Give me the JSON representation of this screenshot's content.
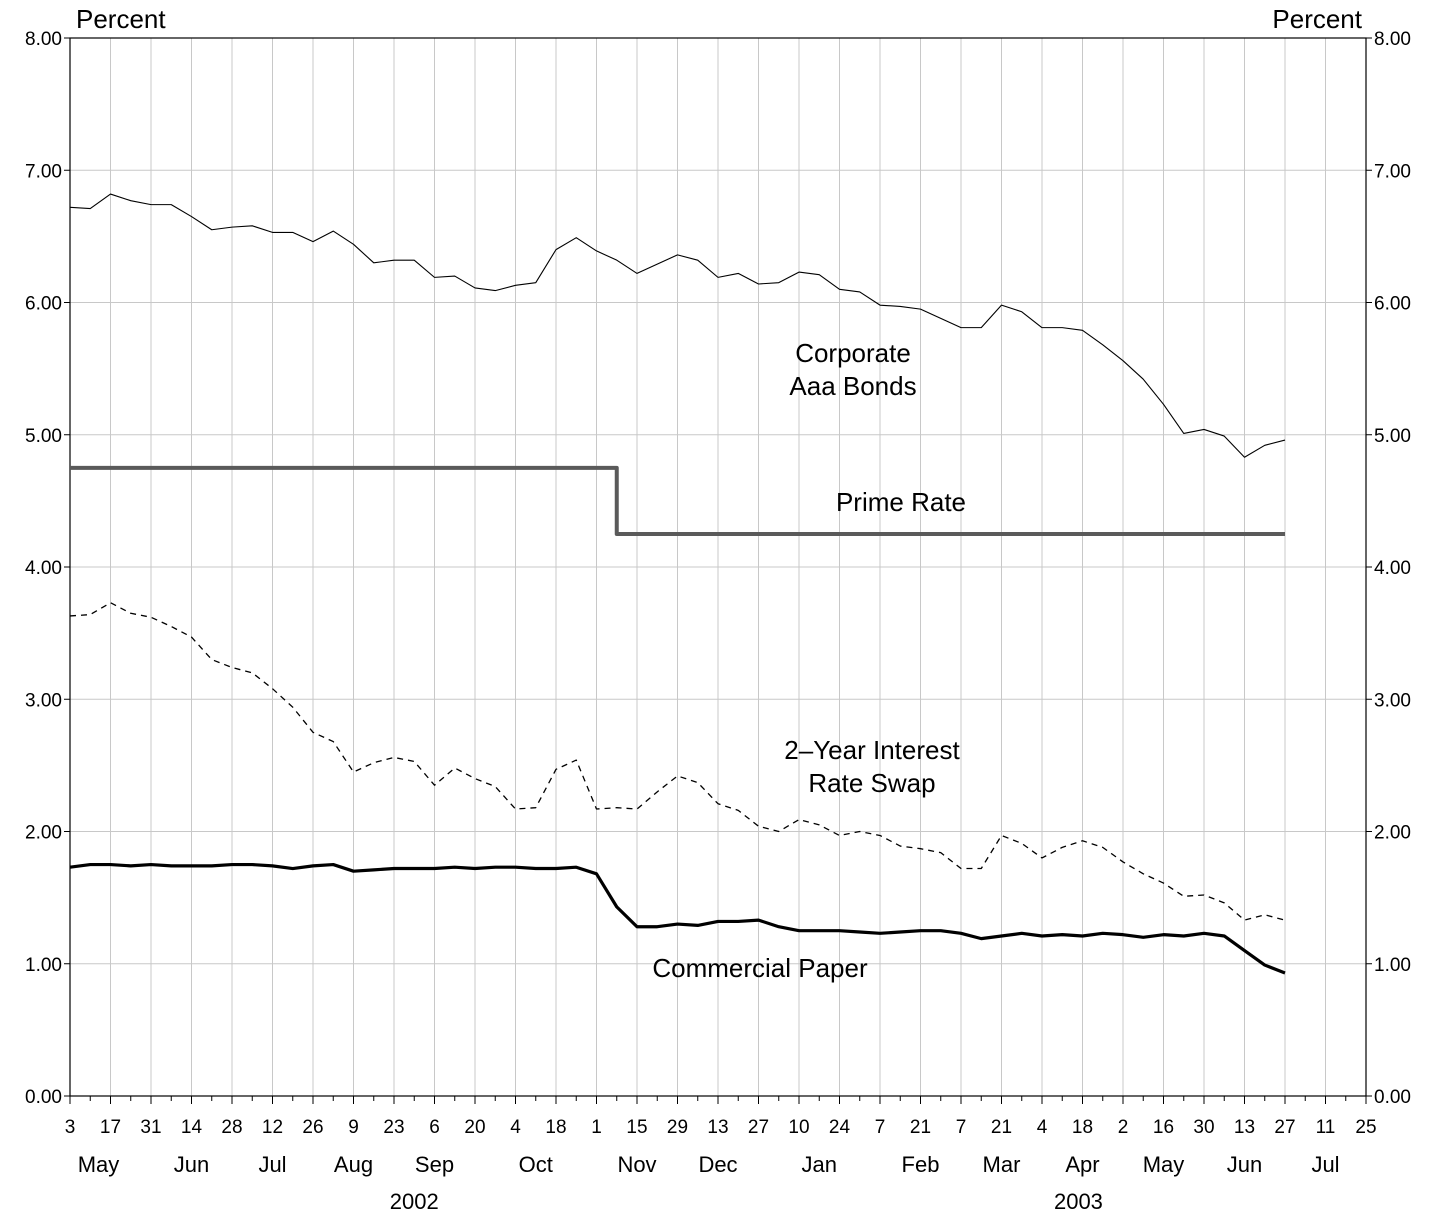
{
  "chart_data": {
    "type": "line",
    "y_axis_left_title": "Percent",
    "y_axis_right_title": "Percent",
    "ylim": [
      0,
      8
    ],
    "y_ticks": [
      "0.00",
      "1.00",
      "2.00",
      "3.00",
      "4.00",
      "5.00",
      "6.00",
      "7.00",
      "8.00"
    ],
    "grid": true,
    "x_day_labels": [
      "3",
      "17",
      "31",
      "14",
      "28",
      "12",
      "26",
      "9",
      "23",
      "6",
      "20",
      "4",
      "18",
      "1",
      "15",
      "29",
      "13",
      "27",
      "10",
      "24",
      "7",
      "21",
      "7",
      "21",
      "4",
      "18",
      "2",
      "16",
      "30",
      "13",
      "27",
      "11",
      "25"
    ],
    "x_month_labels": [
      "May",
      "Jun",
      "Jul",
      "Aug",
      "Sep",
      "Oct",
      "Nov",
      "Dec",
      "Jan",
      "Feb",
      "Mar",
      "Apr",
      "May",
      "Jun",
      "Jul"
    ],
    "x_year_labels": [
      "2002",
      "2003"
    ],
    "series": [
      {
        "name": "Corporate Aaa Bonds",
        "style": "thin-solid",
        "color": "#000000",
        "values": [
          6.72,
          6.71,
          6.82,
          6.77,
          6.74,
          6.74,
          6.65,
          6.55,
          6.57,
          6.58,
          6.53,
          6.53,
          6.46,
          6.54,
          6.44,
          6.3,
          6.32,
          6.32,
          6.19,
          6.2,
          6.11,
          6.09,
          6.13,
          6.15,
          6.4,
          6.49,
          6.39,
          6.32,
          6.22,
          6.29,
          6.36,
          6.32,
          6.19,
          6.22,
          6.14,
          6.15,
          6.23,
          6.21,
          6.1,
          6.08,
          5.98,
          5.97,
          5.95,
          5.88,
          5.81,
          5.81,
          5.98,
          5.93,
          5.81,
          5.81,
          5.79,
          5.68,
          5.56,
          5.42,
          5.23,
          5.01,
          5.04,
          4.99,
          4.83,
          4.92,
          4.96
        ]
      },
      {
        "name": "Prime Rate",
        "style": "thick-gray",
        "color": "#5a5a5a",
        "values": [
          4.75,
          4.75,
          4.75,
          4.75,
          4.75,
          4.75,
          4.75,
          4.75,
          4.75,
          4.75,
          4.75,
          4.75,
          4.75,
          4.75,
          4.75,
          4.75,
          4.75,
          4.75,
          4.75,
          4.75,
          4.75,
          4.75,
          4.75,
          4.75,
          4.75,
          4.75,
          4.75,
          4.25,
          4.25,
          4.25,
          4.25,
          4.25,
          4.25,
          4.25,
          4.25,
          4.25,
          4.25,
          4.25,
          4.25,
          4.25,
          4.25,
          4.25,
          4.25,
          4.25,
          4.25,
          4.25,
          4.25,
          4.25,
          4.25,
          4.25,
          4.25,
          4.25,
          4.25,
          4.25,
          4.25,
          4.25,
          4.25,
          4.25,
          4.25,
          4.25,
          4.25
        ]
      },
      {
        "name": "2–Year Interest Rate Swap",
        "style": "dashed",
        "color": "#000000",
        "values": [
          3.63,
          3.64,
          3.73,
          3.65,
          3.62,
          3.55,
          3.47,
          3.3,
          3.24,
          3.2,
          3.08,
          2.94,
          2.75,
          2.68,
          2.45,
          2.52,
          2.56,
          2.53,
          2.35,
          2.48,
          2.4,
          2.34,
          2.17,
          2.18,
          2.47,
          2.54,
          2.17,
          2.18,
          2.17,
          2.3,
          2.42,
          2.37,
          2.21,
          2.16,
          2.04,
          2.0,
          2.09,
          2.05,
          1.97,
          2.0,
          1.97,
          1.89,
          1.87,
          1.84,
          1.72,
          1.72,
          1.97,
          1.91,
          1.8,
          1.88,
          1.93,
          1.88,
          1.77,
          1.68,
          1.61,
          1.51,
          1.52,
          1.46,
          1.33,
          1.37,
          1.33
        ]
      },
      {
        "name": "Commercial Paper",
        "style": "thick-solid",
        "color": "#000000",
        "values": [
          1.73,
          1.75,
          1.75,
          1.74,
          1.75,
          1.74,
          1.74,
          1.74,
          1.75,
          1.75,
          1.74,
          1.72,
          1.74,
          1.75,
          1.7,
          1.71,
          1.72,
          1.72,
          1.72,
          1.73,
          1.72,
          1.73,
          1.73,
          1.72,
          1.72,
          1.73,
          1.68,
          1.43,
          1.28,
          1.28,
          1.3,
          1.29,
          1.32,
          1.32,
          1.33,
          1.28,
          1.25,
          1.25,
          1.25,
          1.24,
          1.23,
          1.24,
          1.25,
          1.25,
          1.23,
          1.19,
          1.21,
          1.23,
          1.21,
          1.22,
          1.21,
          1.23,
          1.22,
          1.2,
          1.22,
          1.21,
          1.23,
          1.21,
          1.1,
          0.99,
          0.93
        ]
      }
    ],
    "series_labels": [
      {
        "lines": [
          "Corporate",
          "Aaa Bonds"
        ]
      },
      {
        "lines": [
          "Prime Rate"
        ]
      },
      {
        "lines": [
          "2–Year Interest",
          "Rate Swap"
        ]
      },
      {
        "lines": [
          "Commercial Paper"
        ]
      }
    ]
  }
}
